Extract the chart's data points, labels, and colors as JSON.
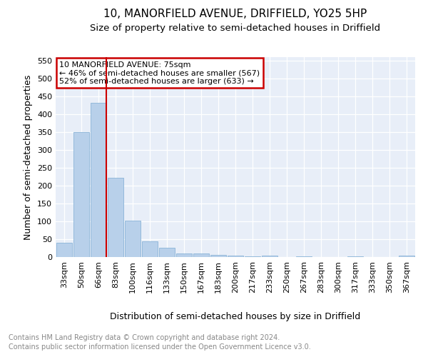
{
  "title": "10, MANORFIELD AVENUE, DRIFFIELD, YO25 5HP",
  "subtitle": "Size of property relative to semi-detached houses in Driffield",
  "xlabel": "Distribution of semi-detached houses by size in Driffield",
  "ylabel": "Number of semi-detached properties",
  "categories": [
    "33sqm",
    "50sqm",
    "66sqm",
    "83sqm",
    "100sqm",
    "116sqm",
    "133sqm",
    "150sqm",
    "167sqm",
    "183sqm",
    "200sqm",
    "217sqm",
    "233sqm",
    "250sqm",
    "267sqm",
    "283sqm",
    "300sqm",
    "317sqm",
    "333sqm",
    "350sqm",
    "367sqm"
  ],
  "values": [
    40,
    350,
    433,
    222,
    102,
    45,
    27,
    10,
    10,
    7,
    4,
    2,
    4,
    0,
    3,
    1,
    0,
    3,
    0,
    1,
    4
  ],
  "bar_color": "#b8d0ea",
  "bar_edge_color": "#8ab4d8",
  "property_bar_index": 2,
  "red_line_label": "10 MANORFIELD AVENUE: 75sqm",
  "annotation_smaller": "← 46% of semi-detached houses are smaller (567)",
  "annotation_larger": "52% of semi-detached houses are larger (633) →",
  "annotation_box_color": "#ffffff",
  "annotation_box_edge_color": "#cc0000",
  "red_line_color": "#cc0000",
  "ylim": [
    0,
    560
  ],
  "yticks": [
    0,
    50,
    100,
    150,
    200,
    250,
    300,
    350,
    400,
    450,
    500,
    550
  ],
  "background_color": "#e8eef8",
  "footer_line1": "Contains HM Land Registry data © Crown copyright and database right 2024.",
  "footer_line2": "Contains public sector information licensed under the Open Government Licence v3.0.",
  "title_fontsize": 11,
  "subtitle_fontsize": 9.5,
  "axis_label_fontsize": 9,
  "tick_fontsize": 8,
  "footer_fontsize": 7
}
